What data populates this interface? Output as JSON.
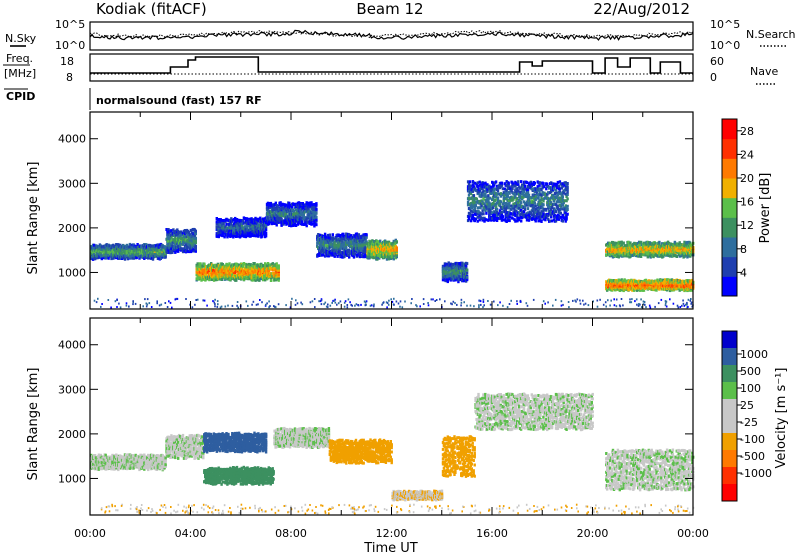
{
  "header": {
    "radar": "Kodiak (fitACF)",
    "beam": "Beam 12",
    "date": "22/Aug/2012"
  },
  "noise_panel": {
    "left_label": "N.Sky",
    "right_label": "N.Search",
    "left_ticks": [
      "10^5",
      "10^0"
    ],
    "right_ticks": [
      "10^5",
      "10^0"
    ]
  },
  "freq_panel": {
    "left_label_top": "Freq.",
    "left_label_bottom": "[MHz]",
    "right_label": "Nave",
    "left_ticks": [
      "18",
      "8"
    ],
    "right_ticks": [
      "60",
      "0"
    ]
  },
  "cpid_panel": {
    "label": "CPID",
    "text": "normalsound (fast) 157 RF"
  },
  "colors": {
    "power": [
      "#0000ff",
      "#1f3fb0",
      "#2e6e9e",
      "#3c9060",
      "#5bbf4a",
      "#f0b000",
      "#ff7a00",
      "#ff3000",
      "#ff0000"
    ],
    "velocity": [
      "#ff0000",
      "#ff3000",
      "#ff7a00",
      "#f0a000",
      "#c8c8c8",
      "#c8c8c8",
      "#5bbf4a",
      "#3c9060",
      "#2e5ea0",
      "#0000cc"
    ]
  },
  "chart_data": [
    {
      "type": "heatmap",
      "title": "Power",
      "ylabel": "Slant Range [km]",
      "xlabel": "Time UT",
      "ylim": [
        180,
        4600
      ],
      "xlim": [
        "00:00",
        "24:00"
      ],
      "y_ticks": [
        "1000",
        "2000",
        "3000",
        "4000"
      ],
      "colorbar": {
        "label": "Power [dB]",
        "ticks": [
          "4",
          "8",
          "12",
          "16",
          "20",
          "24",
          "28"
        ],
        "range": [
          0,
          30
        ]
      },
      "echo_regions": [
        {
          "t_start": 0.0,
          "t_end": 3.0,
          "range_center": 1450,
          "range_width": 300,
          "power": 14
        },
        {
          "t_start": 3.0,
          "t_end": 4.2,
          "range_center": 1700,
          "range_width": 500,
          "power": 12
        },
        {
          "t_start": 4.2,
          "t_end": 7.5,
          "range_center": 1000,
          "range_width": 350,
          "power": 22
        },
        {
          "t_start": 5.0,
          "t_end": 7.0,
          "range_center": 2000,
          "range_width": 400,
          "power": 9
        },
        {
          "t_start": 7.0,
          "t_end": 9.0,
          "range_center": 2300,
          "range_width": 500,
          "power": 10
        },
        {
          "t_start": 9.0,
          "t_end": 11.0,
          "range_center": 1600,
          "range_width": 500,
          "power": 11
        },
        {
          "t_start": 11.0,
          "t_end": 12.2,
          "range_center": 1500,
          "range_width": 400,
          "power": 20
        },
        {
          "t_start": 14.0,
          "t_end": 15.0,
          "range_center": 1000,
          "range_width": 400,
          "power": 12
        },
        {
          "t_start": 15.0,
          "t_end": 19.0,
          "range_center": 2600,
          "range_width": 900,
          "power": 11
        },
        {
          "t_start": 20.5,
          "t_end": 24.0,
          "range_center": 1500,
          "range_width": 300,
          "power": 20
        },
        {
          "t_start": 20.5,
          "t_end": 24.0,
          "range_center": 700,
          "range_width": 200,
          "power": 24
        }
      ]
    },
    {
      "type": "heatmap",
      "title": "Velocity",
      "ylabel": "Slant Range [km]",
      "xlabel": "Time UT",
      "ylim": [
        180,
        4600
      ],
      "xlim": [
        "00:00",
        "24:00"
      ],
      "y_ticks": [
        "1000",
        "2000",
        "3000",
        "4000"
      ],
      "x_ticks": [
        "00:00",
        "04:00",
        "08:00",
        "12:00",
        "16:00",
        "20:00",
        "00:00"
      ],
      "colorbar": {
        "label": "Velocity [m s⁻¹]",
        "ticks": [
          "1000",
          "500",
          "100",
          "25",
          "-25",
          "-100",
          "-500",
          "-1000"
        ]
      },
      "echo_regions": [
        {
          "t_start": 0.0,
          "t_end": 3.0,
          "range_center": 1350,
          "range_width": 300,
          "velocity": 0
        },
        {
          "t_start": 3.0,
          "t_end": 4.5,
          "range_center": 1700,
          "range_width": 500,
          "velocity": 0
        },
        {
          "t_start": 4.5,
          "t_end": 7.3,
          "range_center": 1050,
          "range_width": 350,
          "velocity": 250
        },
        {
          "t_start": 4.5,
          "t_end": 7.0,
          "range_center": 1800,
          "range_width": 400,
          "velocity": 600
        },
        {
          "t_start": 7.3,
          "t_end": 9.5,
          "range_center": 1900,
          "range_width": 400,
          "velocity": 0
        },
        {
          "t_start": 9.5,
          "t_end": 12.0,
          "range_center": 1600,
          "range_width": 500,
          "velocity": -200
        },
        {
          "t_start": 12.0,
          "t_end": 14.0,
          "range_center": 600,
          "range_width": 150,
          "velocity": -80
        },
        {
          "t_start": 14.0,
          "t_end": 15.3,
          "range_center": 1500,
          "range_width": 900,
          "velocity": -200
        },
        {
          "t_start": 15.3,
          "t_end": 20.0,
          "range_center": 2500,
          "range_width": 800,
          "velocity": 0
        },
        {
          "t_start": 20.5,
          "t_end": 24.0,
          "range_center": 1200,
          "range_width": 900,
          "velocity": 0
        }
      ]
    }
  ]
}
